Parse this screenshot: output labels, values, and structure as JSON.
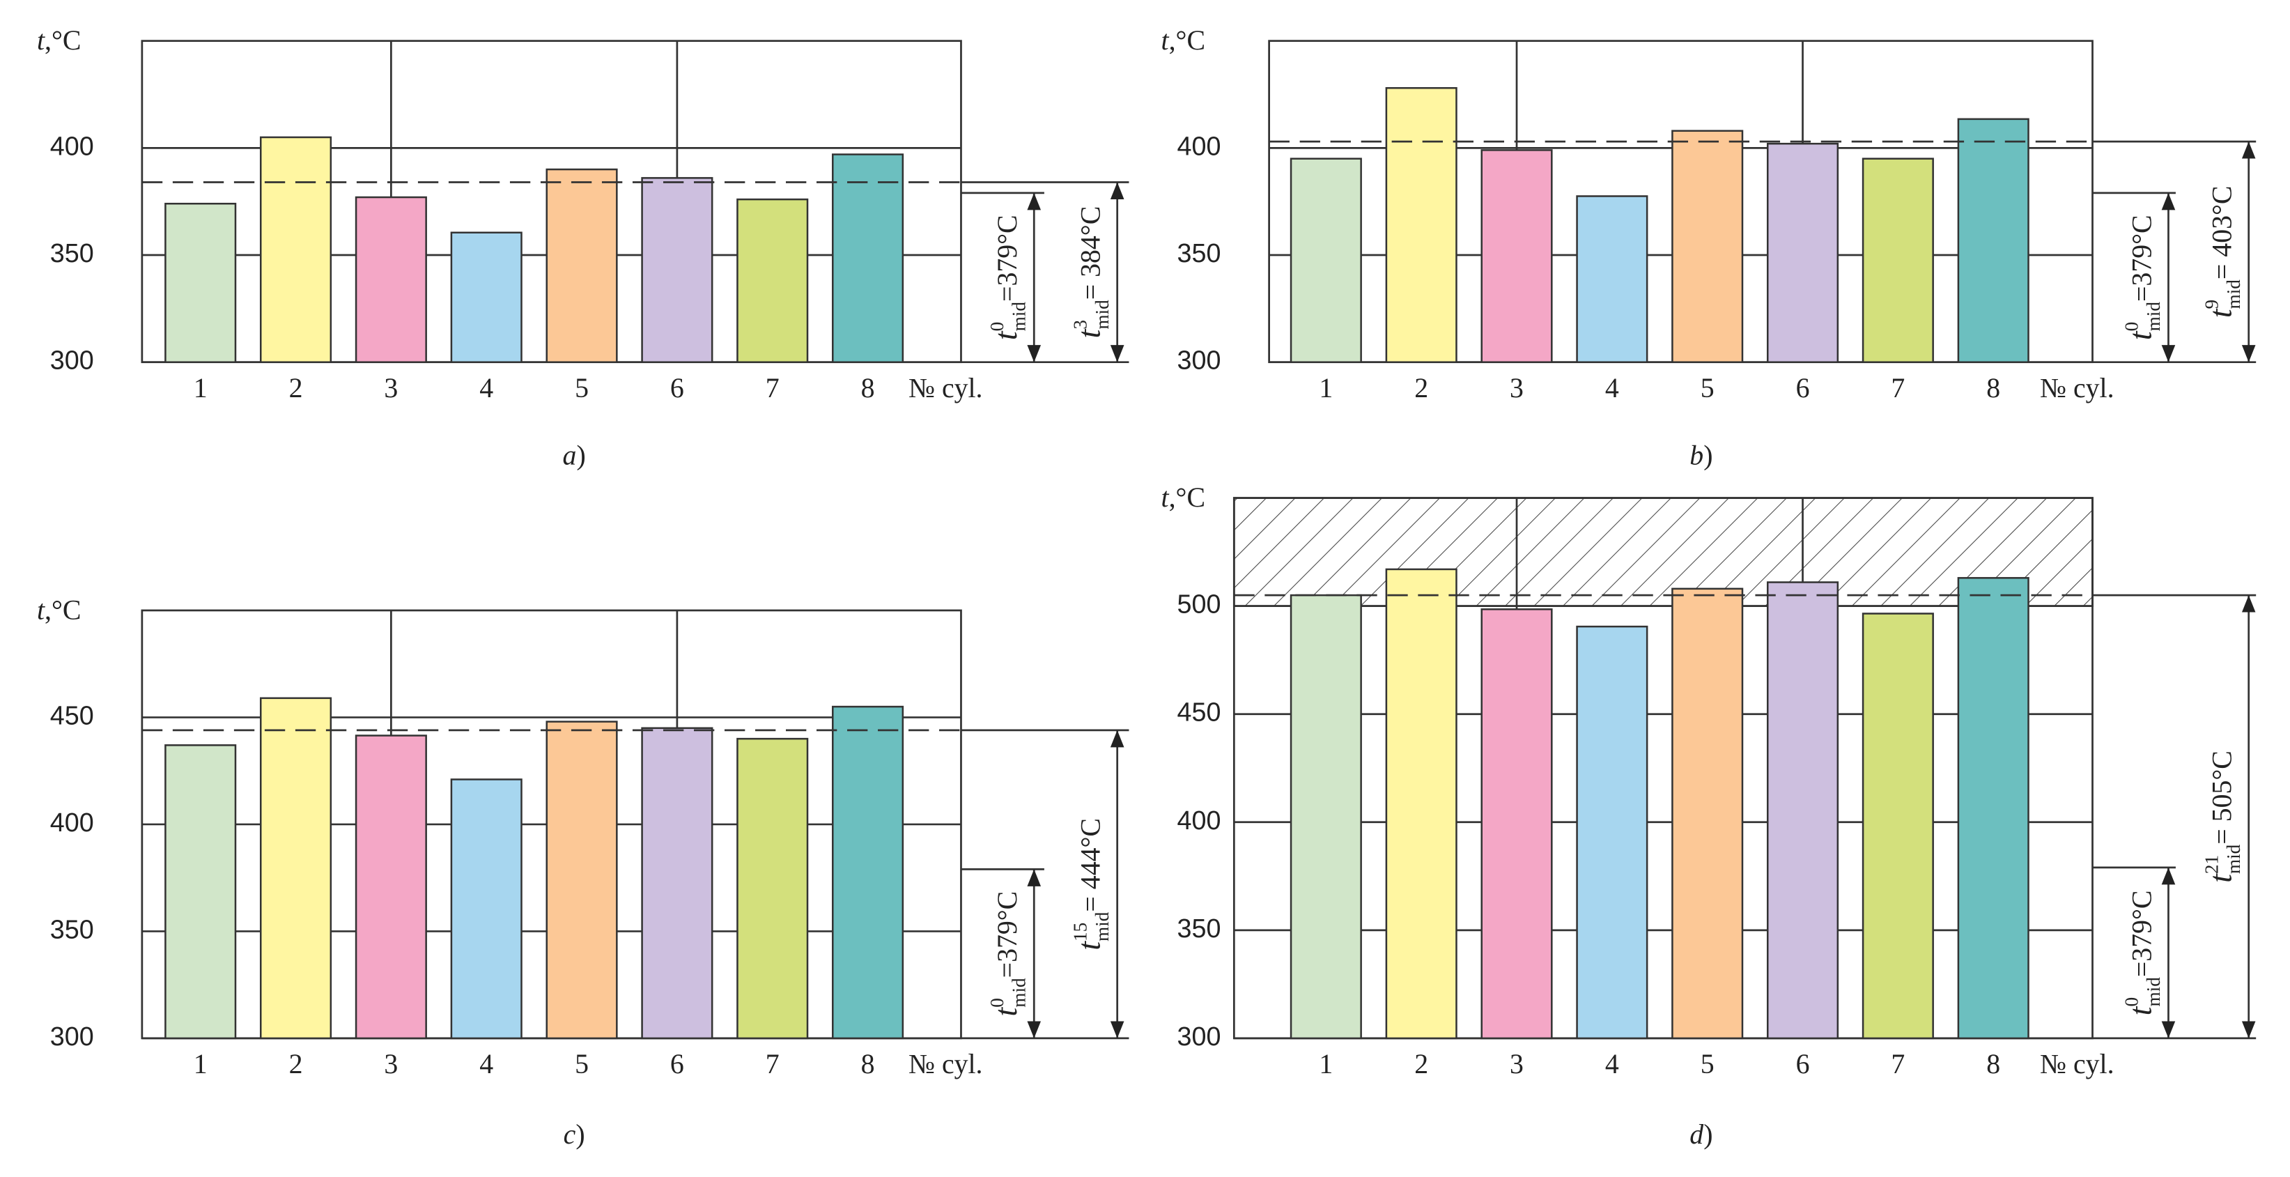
{
  "chart_data": [
    {
      "type": "bar",
      "caption": [
        "a",
        ")"
      ],
      "ylabel": [
        "t",
        ",°C"
      ],
      "xlabel": "№ cyl.",
      "categories": [
        "1",
        "2",
        "3",
        "4",
        "5",
        "6",
        "7",
        "8"
      ],
      "values": [
        374,
        405,
        377,
        360.5,
        390,
        386,
        376,
        397
      ],
      "colors": [
        "#d1e6c9",
        "#fff6a1",
        "#f4a7c6",
        "#a7d6ef",
        "#fcc896",
        "#cdbfdf",
        "#d3e07c",
        "#6cbfbf"
      ],
      "ylim": [
        300,
        450
      ],
      "yticks": [
        300,
        350,
        400
      ],
      "grid": true,
      "annotations": [
        {
          "base": "t",
          "sup": "0",
          "sub": "mid",
          "text": "=379°C",
          "value": 379,
          "dashed": false
        },
        {
          "base": "t",
          "sup": "3",
          "sub": "mid",
          "text": "= 384°C",
          "value": 384,
          "dashed": true
        }
      ]
    },
    {
      "type": "bar",
      "caption": [
        "b",
        ")"
      ],
      "ylabel": [
        "t",
        ",°C"
      ],
      "xlabel": "№ cyl.",
      "categories": [
        "1",
        "2",
        "3",
        "4",
        "5",
        "6",
        "7",
        "8"
      ],
      "values": [
        395,
        428,
        399,
        377.5,
        408,
        402,
        395,
        413.5
      ],
      "colors": [
        "#d1e6c9",
        "#fff6a1",
        "#f4a7c6",
        "#a7d6ef",
        "#fcc896",
        "#cdbfdf",
        "#d3e07c",
        "#6cbfbf"
      ],
      "ylim": [
        300,
        450
      ],
      "yticks": [
        300,
        350,
        400
      ],
      "grid": true,
      "annotations": [
        {
          "base": "t",
          "sup": "0",
          "sub": "mid",
          "text": "=379°C",
          "value": 379,
          "dashed": false
        },
        {
          "base": "t",
          "sup": "9",
          "sub": "mid",
          "text": "= 403°C",
          "value": 403,
          "dashed": true
        }
      ]
    },
    {
      "type": "bar",
      "caption": [
        "c",
        ")"
      ],
      "ylabel": [
        "t",
        ",°C"
      ],
      "xlabel": "№ cyl.",
      "categories": [
        "1",
        "2",
        "3",
        "4",
        "5",
        "6",
        "7",
        "8"
      ],
      "values": [
        437,
        459,
        441.5,
        421,
        448,
        445,
        440,
        455
      ],
      "colors": [
        "#d1e6c9",
        "#fff6a1",
        "#f4a7c6",
        "#a7d6ef",
        "#fcc896",
        "#cdbfdf",
        "#d3e07c",
        "#6cbfbf"
      ],
      "ylim": [
        300,
        500
      ],
      "yticks": [
        300,
        350,
        400,
        450
      ],
      "grid": true,
      "annotations": [
        {
          "base": "t",
          "sup": "0",
          "sub": "mid",
          "text": "=379°C",
          "value": 379,
          "dashed": false
        },
        {
          "base": "t",
          "sup": "15",
          "sub": "mid",
          "text": "= 444°C",
          "value": 444,
          "dashed": true
        }
      ]
    },
    {
      "type": "bar",
      "caption": [
        "d",
        ")"
      ],
      "ylabel": [
        "t",
        ",°C"
      ],
      "xlabel": "№ cyl.",
      "categories": [
        "1",
        "2",
        "3",
        "4",
        "5",
        "6",
        "7",
        "8"
      ],
      "values": [
        505,
        517,
        498.5,
        490.5,
        508,
        511,
        496.5,
        513
      ],
      "colors": [
        "#d1e6c9",
        "#fff6a1",
        "#f4a7c6",
        "#a7d6ef",
        "#fcc896",
        "#cdbfdf",
        "#d3e07c",
        "#6cbfbf"
      ],
      "ylim": [
        300,
        550
      ],
      "yticks": [
        300,
        350,
        400,
        450,
        500
      ],
      "grid": true,
      "hatch_range": [
        500,
        550
      ],
      "annotations": [
        {
          "base": "t",
          "sup": "0",
          "sub": "mid",
          "text": "=379°C",
          "value": 379,
          "dashed": false
        },
        {
          "base": "t",
          "sup": "21",
          "sub": "mid",
          "text": "= 505°C",
          "value": 505,
          "dashed": true
        }
      ]
    }
  ]
}
